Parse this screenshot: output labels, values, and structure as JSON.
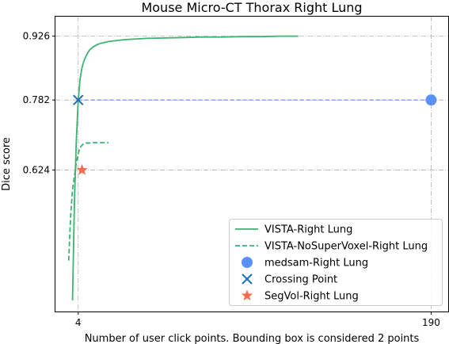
{
  "chart_data": {
    "type": "line",
    "title": "Mouse Micro-CT Thorax Right Lung",
    "xlabel": "Number of user click points. Bounding box is considered 2 points",
    "ylabel": "Dice score",
    "xlim": [
      -8,
      199
    ],
    "ylim": [
      0.305,
      0.97
    ],
    "grid": true,
    "legend_position": "lower-right",
    "x_ticks": [
      4,
      190
    ],
    "y_ticks": [
      0.624,
      0.782,
      0.926
    ],
    "y_tick_labels": [
      "0.624",
      "0.782",
      "0.926"
    ],
    "series": [
      {
        "name": "VISTA-Right Lung",
        "kind": "line",
        "style": "solid",
        "color": "#3cb371",
        "x": [
          1,
          2,
          3,
          4,
          5,
          6,
          7,
          8,
          9,
          10,
          12,
          14,
          16,
          18,
          20,
          24,
          28,
          32,
          36,
          40,
          50,
          60,
          70,
          80,
          90,
          100,
          110,
          120
        ],
        "y": [
          0.33,
          0.55,
          0.69,
          0.78,
          0.83,
          0.855,
          0.87,
          0.88,
          0.888,
          0.895,
          0.902,
          0.907,
          0.91,
          0.912,
          0.914,
          0.916,
          0.918,
          0.919,
          0.92,
          0.921,
          0.922,
          0.923,
          0.924,
          0.924,
          0.925,
          0.925,
          0.926,
          0.926
        ]
      },
      {
        "name": "VISTA-NoSuperVoxel-Right Lung",
        "kind": "line",
        "style": "dashed",
        "color": "#3cb371",
        "x": [
          -1,
          0,
          1,
          2,
          3,
          4,
          5,
          6,
          7,
          8,
          10,
          12,
          15,
          20
        ],
        "y": [
          0.42,
          0.52,
          0.58,
          0.61,
          0.64,
          0.66,
          0.675,
          0.68,
          0.684,
          0.685,
          0.685,
          0.686,
          0.686,
          0.686
        ]
      },
      {
        "name": "medsam-Right Lung",
        "kind": "point",
        "marker": "circle",
        "color": "#5b8ff9",
        "x": [
          190
        ],
        "y": [
          0.782
        ]
      },
      {
        "name": "Crossing Point",
        "kind": "point",
        "marker": "x",
        "color": "#1f6fb5",
        "x": [
          4
        ],
        "y": [
          0.782
        ]
      },
      {
        "name": "SegVol-Right Lung",
        "kind": "point",
        "marker": "star",
        "color": "#f26b4f",
        "x": [
          6
        ],
        "y": [
          0.624
        ]
      }
    ],
    "reference_lines": [
      {
        "orientation": "horizontal",
        "y": 0.782,
        "x_from": 4,
        "x_to": 190,
        "style": "dashed",
        "color": "#5b8ff9"
      }
    ]
  }
}
